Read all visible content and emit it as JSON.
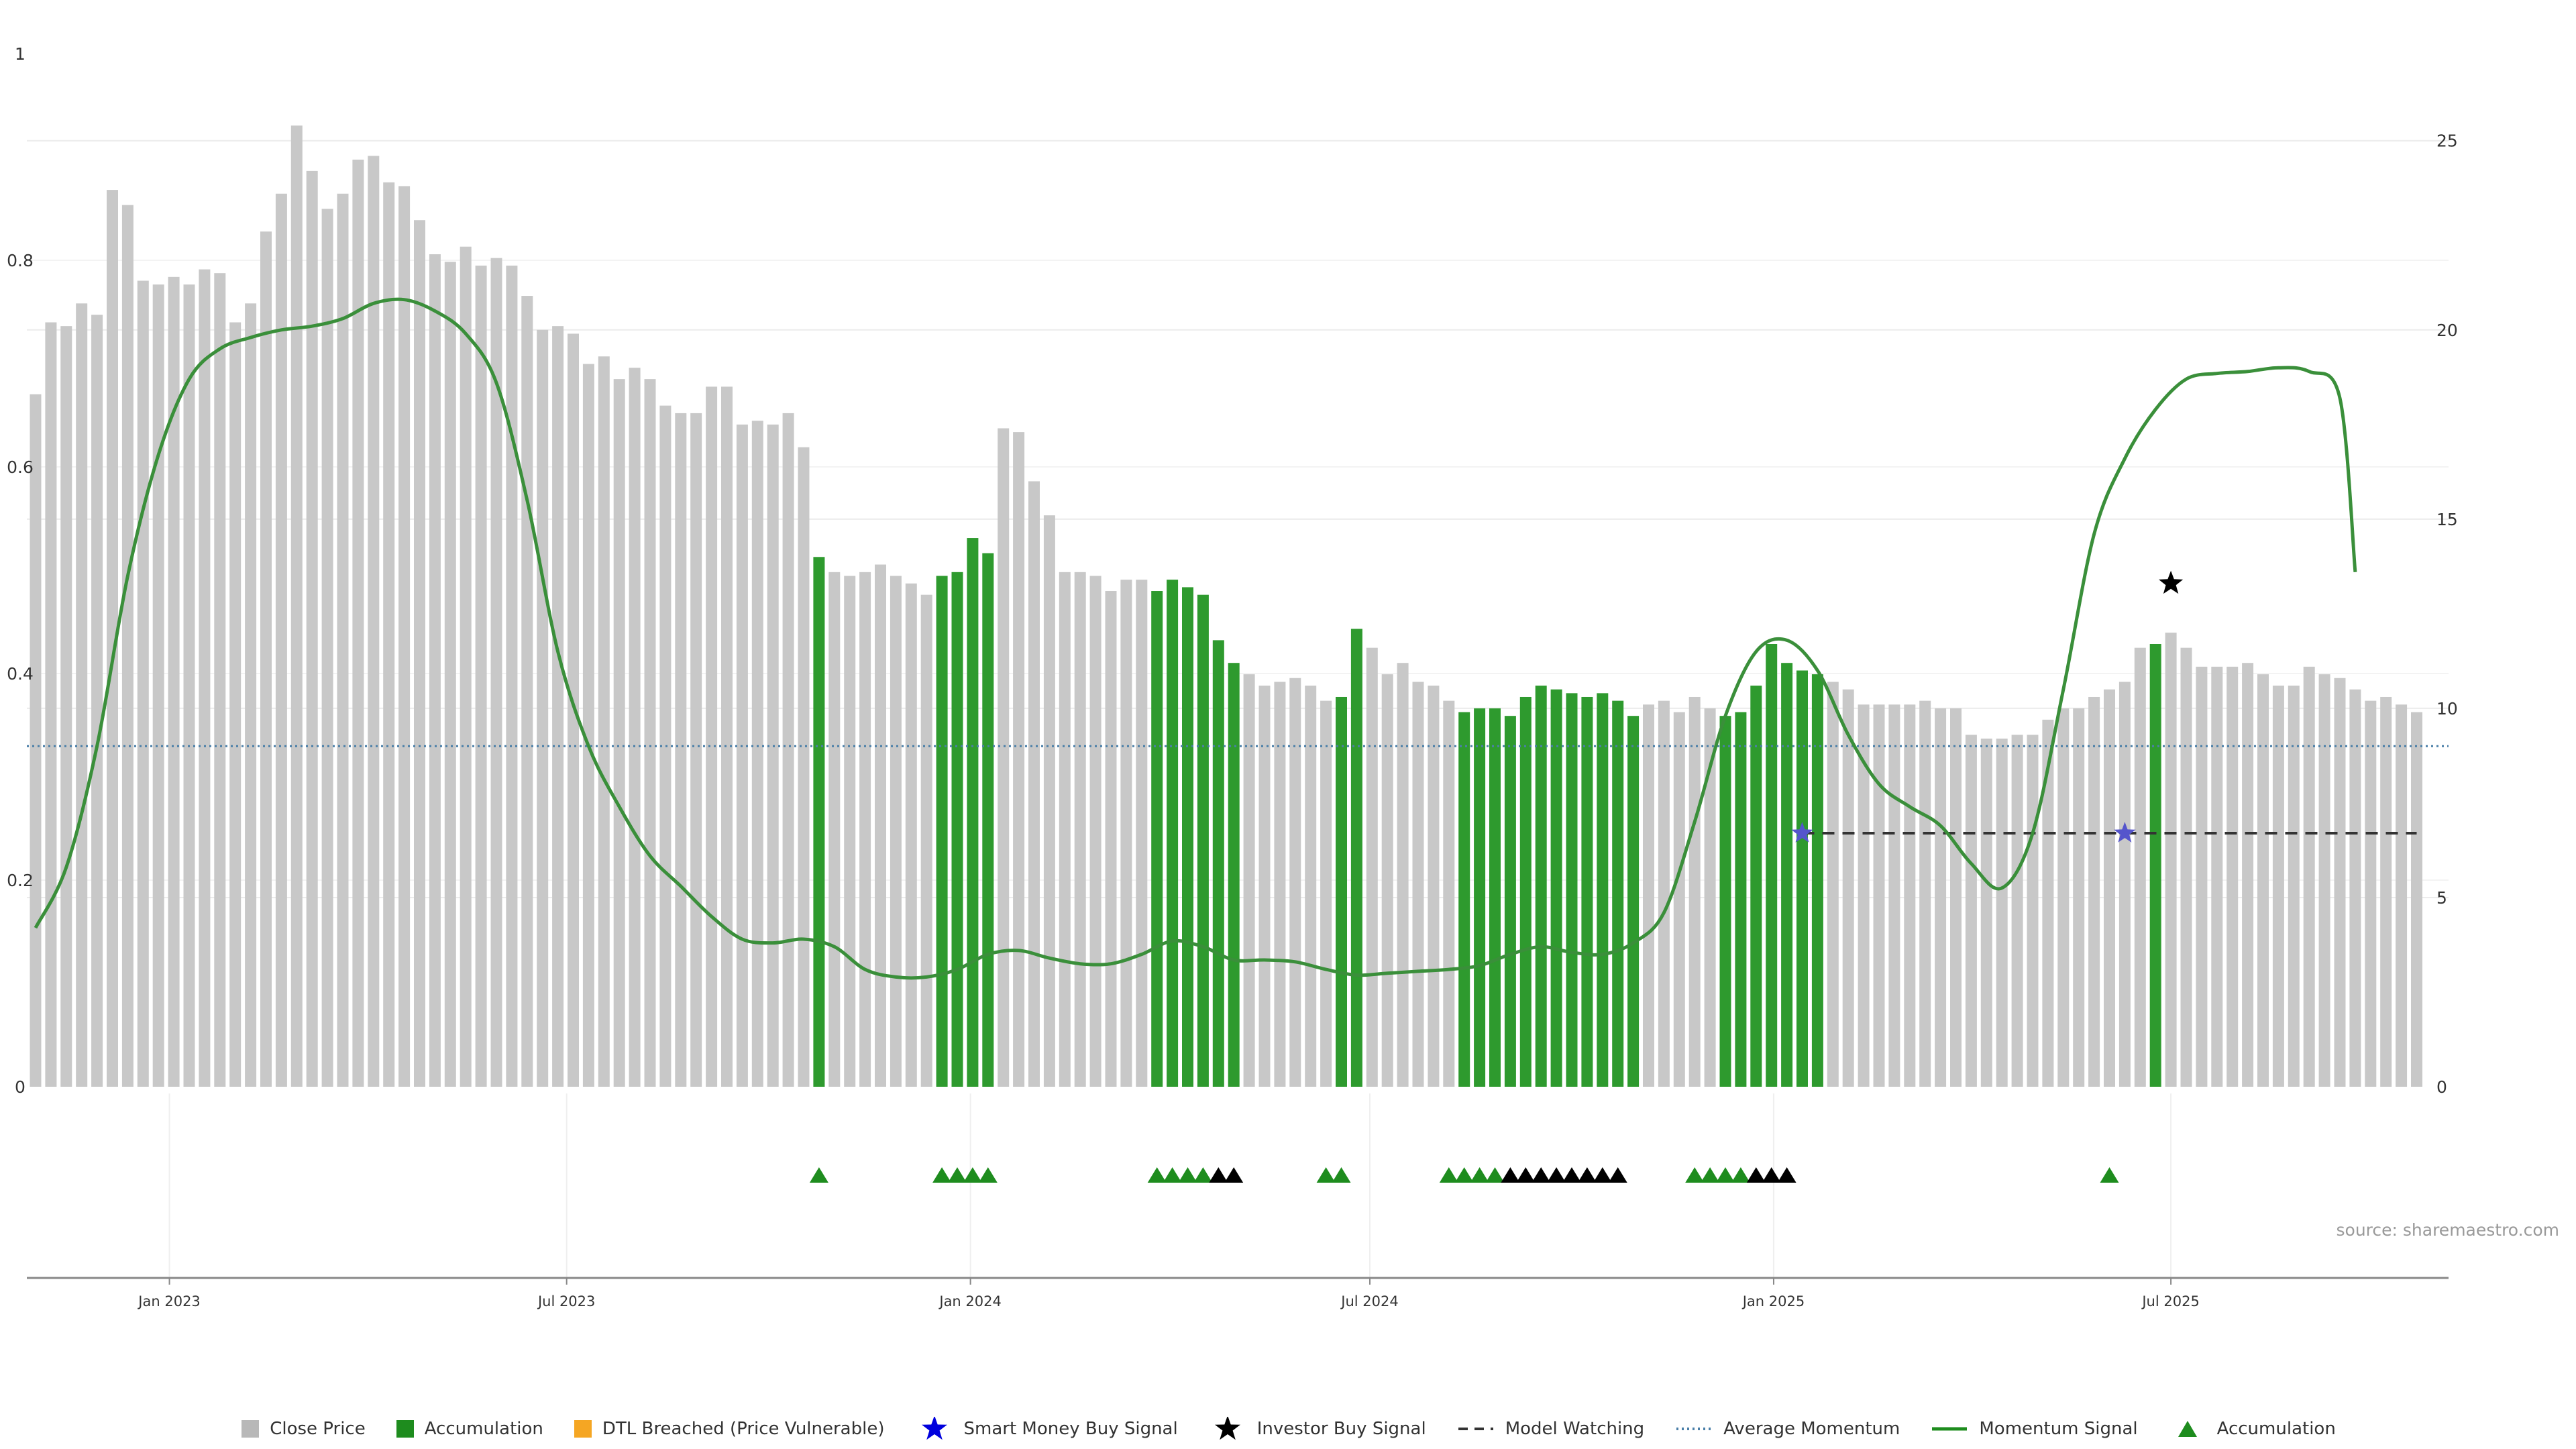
{
  "chart_data": {
    "type": "bar",
    "x_start": "2022-11-01",
    "x_step_days": 7,
    "left_axis": {
      "ylim": [
        0,
        1
      ],
      "ticks": [
        "0",
        "0.2",
        "0.4",
        "0.6",
        "0.8",
        "1"
      ]
    },
    "right_axis": {
      "ylim": [
        0,
        27.3
      ],
      "ticks": [
        "0",
        "5",
        "10",
        "15",
        "20",
        "25"
      ]
    },
    "x_ticks": [
      {
        "label": "Jan 2023",
        "date": "2023-01-01"
      },
      {
        "label": "Jul 2023",
        "date": "2023-07-01"
      },
      {
        "label": "Jan 2024",
        "date": "2024-01-01"
      },
      {
        "label": "Jul 2024",
        "date": "2024-07-01"
      },
      {
        "label": "Jan 2025",
        "date": "2025-01-01"
      },
      {
        "label": "Jul 2025",
        "date": "2025-07-01"
      }
    ],
    "close_price": {
      "name": "Close Price",
      "color": "#c8c8c8",
      "values": [
        18.3,
        20.2,
        20.1,
        20.7,
        20.4,
        23.7,
        23.3,
        21.3,
        21.2,
        21.4,
        21.2,
        21.6,
        21.5,
        20.2,
        20.7,
        22.6,
        23.6,
        25.4,
        24.2,
        23.2,
        23.6,
        24.5,
        24.6,
        23.9,
        23.8,
        22.9,
        22.0,
        21.8,
        22.2,
        21.7,
        21.9,
        21.7,
        20.9,
        20.0,
        20.1,
        19.9,
        19.1,
        19.3,
        18.7,
        19.0,
        18.7,
        18.0,
        17.8,
        17.8,
        18.5,
        18.5,
        17.5,
        17.6,
        17.5,
        17.8,
        16.9,
        14.0,
        13.6,
        13.5,
        13.6,
        13.8,
        13.5,
        13.3,
        13.0,
        13.5,
        13.6,
        14.5,
        14.1,
        17.4,
        17.3,
        16.0,
        15.1,
        13.6,
        13.6,
        13.5,
        13.1,
        13.4,
        13.4,
        13.1,
        13.4,
        13.2,
        13.0,
        11.8,
        11.2,
        10.9,
        10.6,
        10.7,
        10.8,
        10.6,
        10.2,
        10.3,
        12.1,
        11.6,
        10.9,
        11.2,
        10.7,
        10.6,
        10.2,
        9.9,
        10.0,
        10.0,
        9.8,
        10.3,
        10.6,
        10.5,
        10.4,
        10.3,
        10.4,
        10.2,
        9.8,
        10.1,
        10.2,
        9.9,
        10.3,
        10.0,
        9.8,
        9.9,
        10.6,
        11.7,
        11.2,
        11.0,
        10.9,
        10.7,
        10.5,
        10.1,
        10.1,
        10.1,
        10.1,
        10.2,
        10.0,
        10.0,
        9.3,
        9.2,
        9.2,
        9.3,
        9.3,
        9.7,
        10.0,
        10.0,
        10.3,
        10.5,
        10.7,
        11.6,
        11.7,
        12.0,
        11.6,
        11.1,
        11.1,
        11.1,
        11.2,
        10.9,
        10.6,
        10.6,
        11.1,
        10.9,
        10.8,
        10.5,
        10.2,
        10.3,
        10.1,
        9.9
      ],
      "accumulation_flags": [
        0,
        0,
        0,
        0,
        0,
        0,
        0,
        0,
        0,
        0,
        0,
        0,
        0,
        0,
        0,
        0,
        0,
        0,
        0,
        0,
        0,
        0,
        0,
        0,
        0,
        0,
        0,
        0,
        0,
        0,
        0,
        0,
        0,
        0,
        0,
        0,
        0,
        0,
        0,
        0,
        0,
        0,
        0,
        0,
        0,
        0,
        0,
        0,
        0,
        0,
        0,
        1,
        0,
        0,
        0,
        0,
        0,
        0,
        0,
        1,
        1,
        1,
        1,
        0,
        0,
        0,
        0,
        0,
        0,
        0,
        0,
        0,
        0,
        1,
        1,
        1,
        1,
        1,
        1,
        0,
        0,
        0,
        0,
        0,
        0,
        1,
        1,
        0,
        0,
        0,
        0,
        0,
        0,
        1,
        1,
        1,
        1,
        1,
        1,
        1,
        1,
        1,
        1,
        1,
        1,
        0,
        0,
        0,
        0,
        0,
        1,
        1,
        1,
        1,
        1,
        1,
        1,
        0,
        0,
        0,
        0,
        0,
        0,
        0,
        0,
        0,
        0,
        0,
        0,
        0,
        0,
        0,
        0,
        0,
        0,
        0,
        0,
        0,
        1,
        0,
        0,
        0,
        0,
        0,
        0,
        0,
        0,
        0,
        0,
        0,
        0,
        0,
        0,
        0,
        0,
        0,
        0,
        0
      ]
    },
    "momentum_signal": {
      "name": "Momentum Signal",
      "color": "#1e8c1e",
      "points": [
        [
          0,
          4.2
        ],
        [
          2,
          5.8
        ],
        [
          4,
          9.0
        ],
        [
          6,
          13.5
        ],
        [
          8,
          16.7
        ],
        [
          10,
          18.7
        ],
        [
          12,
          19.5
        ],
        [
          14,
          19.8
        ],
        [
          16,
          20.0
        ],
        [
          18,
          20.1
        ],
        [
          20,
          20.3
        ],
        [
          22,
          20.7
        ],
        [
          24,
          20.8
        ],
        [
          26,
          20.5
        ],
        [
          28,
          19.9
        ],
        [
          30,
          18.6
        ],
        [
          32,
          15.5
        ],
        [
          34,
          11.5
        ],
        [
          36,
          9.0
        ],
        [
          38,
          7.4
        ],
        [
          40,
          6.1
        ],
        [
          42,
          5.3
        ],
        [
          44,
          4.5
        ],
        [
          46,
          3.9
        ],
        [
          48,
          3.8
        ],
        [
          50,
          3.9
        ],
        [
          52,
          3.7
        ],
        [
          54,
          3.1
        ],
        [
          56,
          2.9
        ],
        [
          58,
          2.9
        ],
        [
          60,
          3.1
        ],
        [
          62,
          3.5
        ],
        [
          64,
          3.6
        ],
        [
          66,
          3.4
        ],
        [
          68,
          3.25
        ],
        [
          70,
          3.25
        ],
        [
          72,
          3.5
        ],
        [
          74,
          3.85
        ],
        [
          76,
          3.7
        ],
        [
          78,
          3.35
        ],
        [
          80,
          3.35
        ],
        [
          82,
          3.3
        ],
        [
          84,
          3.1
        ],
        [
          86,
          2.95
        ],
        [
          88,
          3.0
        ],
        [
          90,
          3.05
        ],
        [
          92,
          3.1
        ],
        [
          94,
          3.2
        ],
        [
          96,
          3.5
        ],
        [
          98,
          3.7
        ],
        [
          100,
          3.55
        ],
        [
          102,
          3.5
        ],
        [
          104,
          3.8
        ],
        [
          106,
          4.6
        ],
        [
          108,
          7.0
        ],
        [
          110,
          9.8
        ],
        [
          112,
          11.5
        ],
        [
          114,
          11.8
        ],
        [
          116,
          11.0
        ],
        [
          118,
          9.3
        ],
        [
          120,
          8.0
        ],
        [
          122,
          7.4
        ],
        [
          124,
          6.9
        ],
        [
          126,
          5.9
        ],
        [
          128,
          5.25
        ],
        [
          130,
          6.7
        ],
        [
          132,
          10.5
        ],
        [
          134,
          14.6
        ],
        [
          136,
          16.6
        ],
        [
          138,
          17.9
        ],
        [
          140,
          18.7
        ],
        [
          142,
          18.85
        ],
        [
          144,
          18.9
        ],
        [
          146,
          19.0
        ],
        [
          148,
          18.9
        ],
        [
          150,
          18.2
        ],
        [
          151,
          13.6
        ]
      ]
    },
    "average_momentum": {
      "name": "Average Momentum",
      "value": 9.0,
      "color": "#4a7fa8"
    },
    "model_watching": {
      "name": "Model Watching",
      "value": 6.7,
      "from": 115,
      "to": 155,
      "color": "#333333"
    },
    "smart_money_buy": {
      "name": "Smart Money Buy Signal",
      "color": "#5555cc",
      "points": [
        [
          115,
          6.7
        ],
        [
          136,
          6.7
        ]
      ]
    },
    "investor_buy": {
      "name": "Investor Buy Signal",
      "color": "#000000",
      "points": [
        [
          139,
          13.3
        ]
      ]
    },
    "signal_triangles": [
      {
        "i": 51,
        "c": "g"
      },
      {
        "i": 59,
        "c": "g"
      },
      {
        "i": 60,
        "c": "g"
      },
      {
        "i": 61,
        "c": "g"
      },
      {
        "i": 62,
        "c": "g"
      },
      {
        "i": 73,
        "c": "g"
      },
      {
        "i": 74,
        "c": "g"
      },
      {
        "i": 75,
        "c": "g"
      },
      {
        "i": 76,
        "c": "g"
      },
      {
        "i": 77,
        "c": "k"
      },
      {
        "i": 78,
        "c": "k"
      },
      {
        "i": 84,
        "c": "g"
      },
      {
        "i": 85,
        "c": "g"
      },
      {
        "i": 92,
        "c": "g"
      },
      {
        "i": 93,
        "c": "g"
      },
      {
        "i": 94,
        "c": "g"
      },
      {
        "i": 95,
        "c": "g"
      },
      {
        "i": 96,
        "c": "k"
      },
      {
        "i": 97,
        "c": "k"
      },
      {
        "i": 98,
        "c": "k"
      },
      {
        "i": 99,
        "c": "k"
      },
      {
        "i": 100,
        "c": "k"
      },
      {
        "i": 101,
        "c": "k"
      },
      {
        "i": 102,
        "c": "k"
      },
      {
        "i": 103,
        "c": "k"
      },
      {
        "i": 108,
        "c": "g"
      },
      {
        "i": 109,
        "c": "g"
      },
      {
        "i": 110,
        "c": "g"
      },
      {
        "i": 111,
        "c": "g"
      },
      {
        "i": 112,
        "c": "k"
      },
      {
        "i": 113,
        "c": "k"
      },
      {
        "i": 114,
        "c": "k"
      },
      {
        "i": 135,
        "c": "g"
      }
    ],
    "source_text": "source: sharemaestro.com",
    "legend": [
      {
        "label": "Close Price",
        "kind": "square",
        "color": "#b8b8b8"
      },
      {
        "label": "Accumulation",
        "kind": "square",
        "color": "#1e8c1e"
      },
      {
        "label": "DTL Breached (Price Vulnerable)",
        "kind": "square",
        "color": "#f5a623"
      },
      {
        "label": "Smart Money Buy Signal",
        "kind": "star",
        "color": "#0000dd"
      },
      {
        "label": "Investor Buy Signal",
        "kind": "star",
        "color": "#000000"
      },
      {
        "label": "Model Watching",
        "kind": "dash",
        "color": "#333333"
      },
      {
        "label": "Average Momentum",
        "kind": "dot",
        "color": "#4a7fa8"
      },
      {
        "label": "Momentum Signal",
        "kind": "line",
        "color": "#1e8c1e"
      },
      {
        "label": "Accumulation",
        "kind": "triangle",
        "color": "#1e8c1e"
      }
    ]
  }
}
